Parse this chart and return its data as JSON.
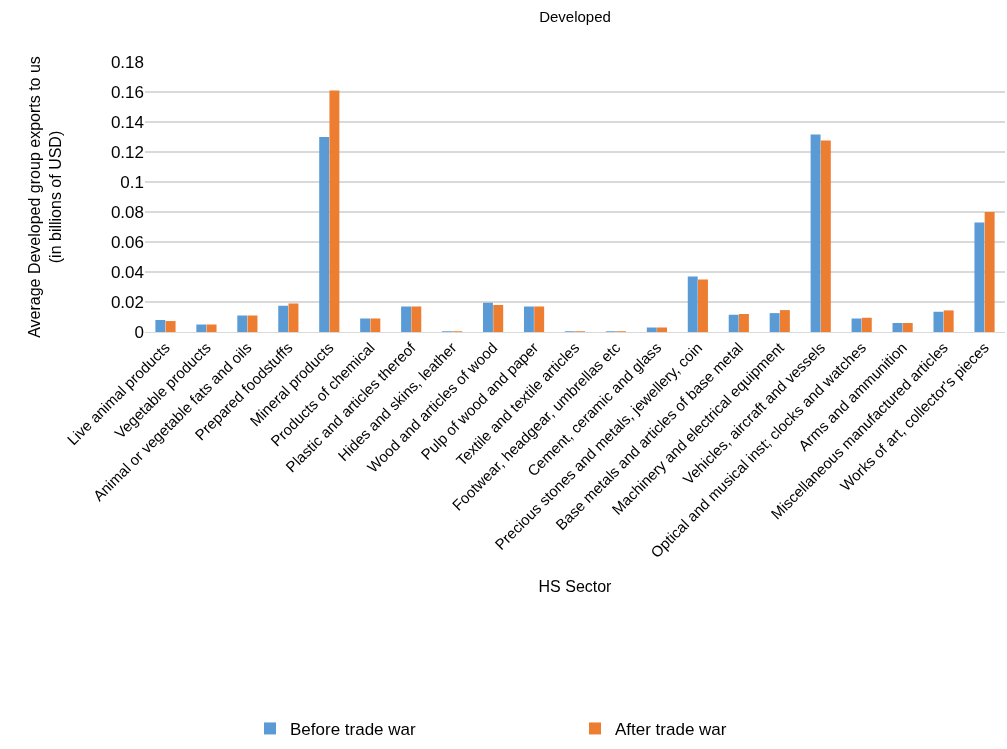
{
  "chart_data": {
    "type": "bar",
    "title": "Developed",
    "xlabel": "HS Sector",
    "ylabel": "Average Developed group exports to us\n(in billions of USD)",
    "categories": [
      "Live animal products",
      "Vegetable products",
      "Animal or vegetable fats and oils",
      "Prepared foodstuffs",
      "Mineral products",
      "Products of chemical",
      "Plastic and articles thereof",
      "Hides and skins, leather",
      "Wood and articles of wood",
      "Pulp of wood and paper",
      "Textile and textile articles",
      "Footwear, headgear, umbrellas etc",
      "Cement, ceramic and glass",
      "Precious stones and metals, jewellery, coin",
      "Base metals and articles of base metal",
      "Machinery and electrical equipment",
      "Vehicles, aircraft and vessels",
      "Optical and musical inst; clocks and watches",
      "Arms and ammunition",
      "Miscellaneous manufactured articles",
      "Works of art, collector's pieces"
    ],
    "series": [
      {
        "name": "Before trade war",
        "color": "#5b9bd5",
        "values": [
          0.008,
          0.005,
          0.011,
          0.0175,
          0.13,
          0.009,
          0.017,
          0.0005,
          0.0195,
          0.017,
          0.0005,
          0.0005,
          0.003,
          0.037,
          0.0115,
          0.0126,
          0.1316,
          0.009,
          0.006,
          0.0135,
          0.073
        ]
      },
      {
        "name": "After trade war",
        "color": "#ed7d31",
        "values": [
          0.0073,
          0.005,
          0.011,
          0.019,
          0.161,
          0.009,
          0.017,
          0.0005,
          0.018,
          0.017,
          0.0005,
          0.0005,
          0.003,
          0.035,
          0.012,
          0.0146,
          0.1276,
          0.0095,
          0.006,
          0.0144,
          0.08
        ]
      }
    ],
    "ylim": [
      0,
      0.18
    ],
    "yticks": [
      0,
      0.02,
      0.04,
      0.06,
      0.08,
      0.1,
      0.12,
      0.14,
      0.16,
      0.18
    ],
    "grid": "y",
    "legend": "bottom"
  }
}
